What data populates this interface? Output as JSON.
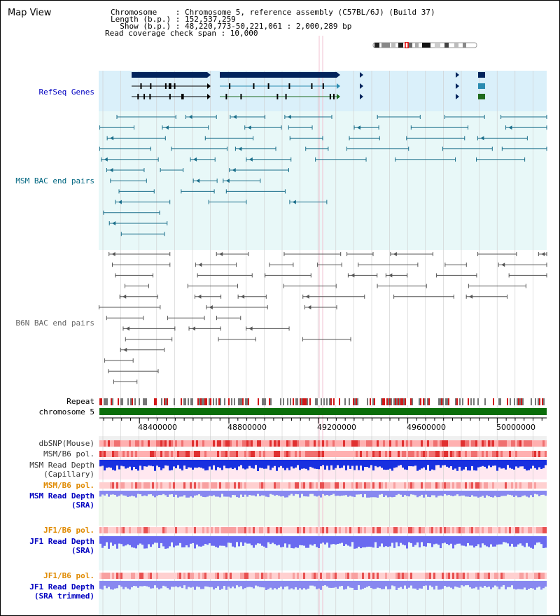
{
  "header": {
    "title": "Map View",
    "chromosome_line": "Chromosome    : Chromosome 5, reference assembly (C57BL/6J) (Build 37)",
    "length_line": "Length (b.p.) : 152,537,259",
    "show_line": "  Show (b.p.) : 48,220,773-50,221,061 : 2,000,289 bp",
    "coverage_line": "Read coverage check span : 10,000"
  },
  "tracks": {
    "refseq": "RefSeq Genes",
    "msm_bac": "MSM BAC end pairs",
    "b6n_bac": "B6N BAC end pairs",
    "repeat": "Repeat",
    "chromosome": "chromosome 5",
    "dbsnp": "dbSNP(Mouse)",
    "msm_b6_pol_1": "MSM/B6 pol.",
    "msm_depth_cap_1": "MSM Read Depth",
    "msm_depth_cap_2": "(Capillary)",
    "msm_b6_pol_2": "MSM/B6 pol.",
    "msm_depth_sra_1": "MSM Read Depth",
    "msm_depth_sra_2": "(SRA)",
    "jf1_pol_1": "JF1/B6 pol.",
    "jf1_depth_sra_1": "JF1 Read Depth",
    "jf1_depth_sra_2": "(SRA)",
    "jf1_pol_2": "JF1/B6 pol.",
    "jf1_depth_trim_1": "JF1 Read Depth",
    "jf1_depth_trim_2": "(SRA trimmed)"
  },
  "axis": {
    "ticks": [
      "48400000",
      "48800000",
      "49200000",
      "49600000",
      "50000000"
    ],
    "tick_values": [
      48400000,
      48800000,
      49200000,
      49600000,
      50000000
    ],
    "range": [
      48220773,
      50221061
    ]
  },
  "colors": {
    "refseq_bg": "#daf0fa",
    "msm_bg": "#e8f8f8",
    "b6n_bg": "#ffffff",
    "refseq_label": "#0000c0",
    "msm_label": "#006680",
    "b6n_label": "#666666",
    "pol_orange": "#e08a00",
    "depth_blue": "#0000c0",
    "gene_navy": "#00245c",
    "gene_teal": "#2a8bb0",
    "gene_green": "#1e6a1e",
    "chrom_green": "#0a6e0a",
    "grid": "#cccccc"
  }
}
